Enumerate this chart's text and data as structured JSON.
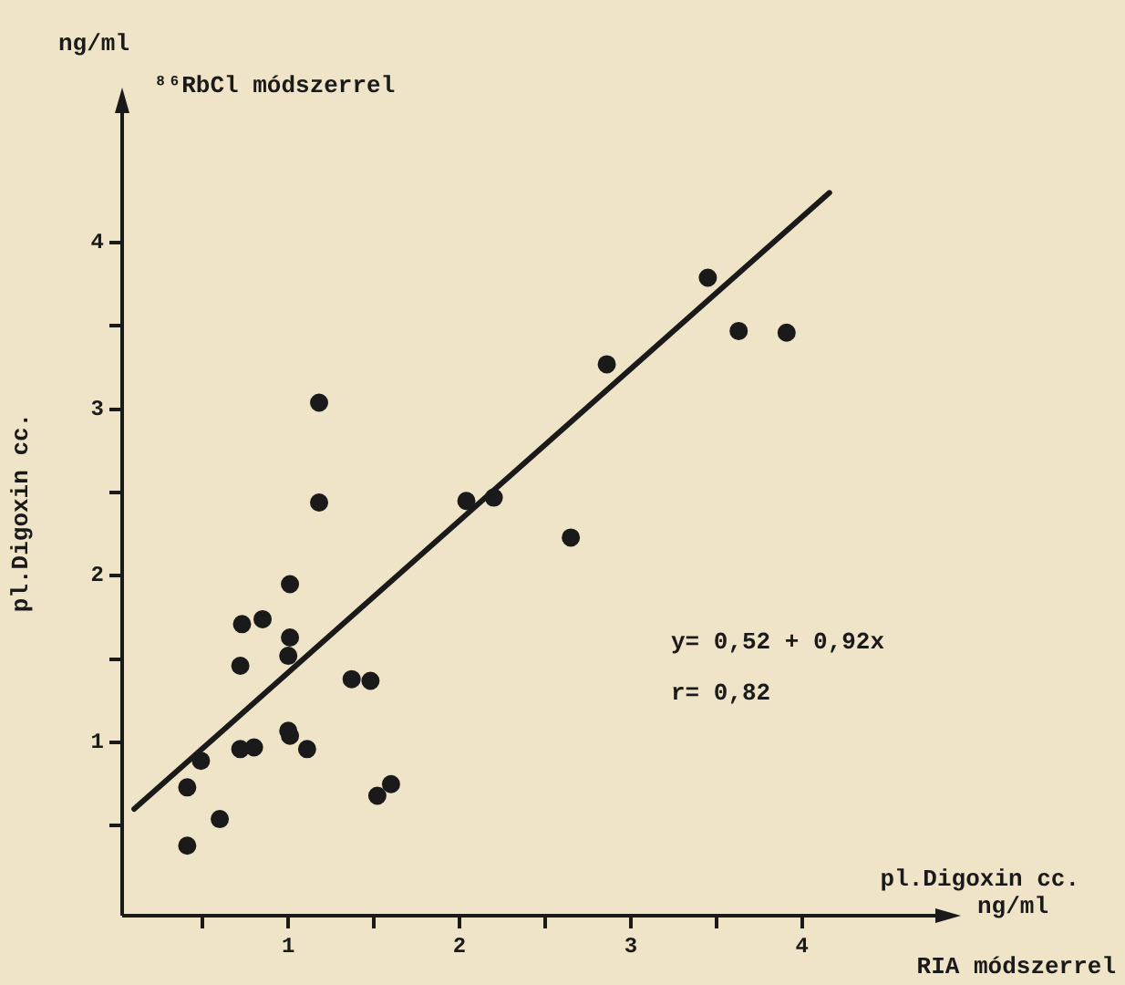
{
  "chart_data": {
    "type": "scatter",
    "ylabel": "pl.Digoxin cc.",
    "xlabel": "pl.Digoxin cc.",
    "annotations": [
      "ng/ml",
      "⁸⁶RbCl módszerrel",
      "ng/ml",
      "RIA módszerrel",
      "y= 0,52 + 0,92x",
      "r= 0,82"
    ],
    "xlim": [
      0.03,
      4.8
    ],
    "ylim": [
      -0.04,
      4.8
    ],
    "xticks": [
      {
        "value": 0.5,
        "label": null
      },
      1,
      {
        "value": 1.5,
        "label": null
      },
      2,
      {
        "value": 2.5,
        "label": null
      },
      3,
      {
        "value": 3.5,
        "label": null
      },
      4
    ],
    "yticks": [
      {
        "value": 0.5,
        "label": null
      },
      1,
      {
        "value": 1.5,
        "label": null
      },
      2,
      {
        "value": 2.5,
        "label": null
      },
      3,
      {
        "value": 3.5,
        "label": null
      },
      4
    ],
    "grid": false,
    "legend": false,
    "marker": "circle",
    "series": [
      {
        "color": "#1a1a1a",
        "x": [
          1.18,
          1.18,
          2.04,
          2.2,
          1.01,
          0.73,
          0.85,
          1.01,
          1.0,
          0.72,
          1.37,
          1.48,
          1.0,
          1.01,
          0.72,
          0.8,
          1.11,
          0.49,
          0.41,
          1.52,
          1.6,
          0.6,
          0.41,
          2.86,
          3.45,
          3.63,
          3.91,
          2.65
        ],
        "values": [
          3.04,
          2.44,
          2.45,
          2.47,
          1.95,
          1.71,
          1.74,
          1.63,
          1.52,
          1.46,
          1.38,
          1.37,
          1.07,
          1.04,
          0.96,
          0.97,
          0.96,
          0.89,
          0.73,
          0.68,
          0.75,
          0.54,
          0.38,
          3.27,
          3.79,
          3.47,
          3.46,
          2.23
        ]
      },
      {
        "type": "line",
        "color": "#1a1a1a",
        "marker": "none",
        "line_style": "solid",
        "x": [
          0.1,
          4.16
        ],
        "values": [
          0.6,
          4.3
        ]
      }
    ]
  }
}
